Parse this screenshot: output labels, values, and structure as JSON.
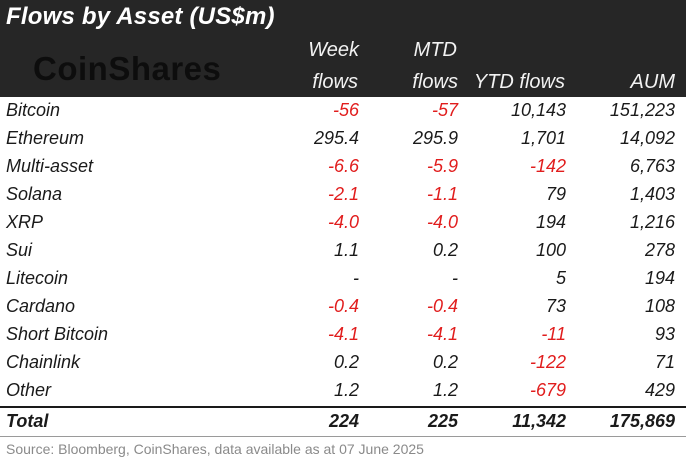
{
  "title": "Flows by Asset (US$m)",
  "logo_text": "CoinShares",
  "headers": {
    "week_line1": "Week",
    "week_line2": "flows",
    "mtd_line1": "MTD",
    "mtd_line2": "flows",
    "ytd": "YTD flows",
    "aum": "AUM"
  },
  "rows": [
    {
      "name": "Bitcoin",
      "week": "-56",
      "mtd": "-57",
      "ytd": "10,143",
      "aum": "151,223"
    },
    {
      "name": "Ethereum",
      "week": "295.4",
      "mtd": "295.9",
      "ytd": "1,701",
      "aum": "14,092"
    },
    {
      "name": "Multi-asset",
      "week": "-6.6",
      "mtd": "-5.9",
      "ytd": "-142",
      "aum": "6,763"
    },
    {
      "name": "Solana",
      "week": "-2.1",
      "mtd": "-1.1",
      "ytd": "79",
      "aum": "1,403"
    },
    {
      "name": "XRP",
      "week": "-4.0",
      "mtd": "-4.0",
      "ytd": "194",
      "aum": "1,216"
    },
    {
      "name": "Sui",
      "week": "1.1",
      "mtd": "0.2",
      "ytd": "100",
      "aum": "278"
    },
    {
      "name": "Litecoin",
      "week": "-",
      "mtd": "-",
      "ytd": "5",
      "aum": "194"
    },
    {
      "name": "Cardano",
      "week": "-0.4",
      "mtd": "-0.4",
      "ytd": "73",
      "aum": "108"
    },
    {
      "name": "Short Bitcoin",
      "week": "-4.1",
      "mtd": "-4.1",
      "ytd": "-11",
      "aum": "93"
    },
    {
      "name": "Chainlink",
      "week": "0.2",
      "mtd": "0.2",
      "ytd": "-122",
      "aum": "71"
    },
    {
      "name": "Other",
      "week": "1.2",
      "mtd": "1.2",
      "ytd": "-679",
      "aum": "429"
    }
  ],
  "total": {
    "name": "Total",
    "week": "224",
    "mtd": "225",
    "ytd": "11,342",
    "aum": "175,869"
  },
  "source": "Source: Bloomberg, CoinShares, data available as at 07 June 2025",
  "colors": {
    "header_bg": "#262626",
    "negative": "#e11d1d",
    "text": "#1a1a1a"
  }
}
